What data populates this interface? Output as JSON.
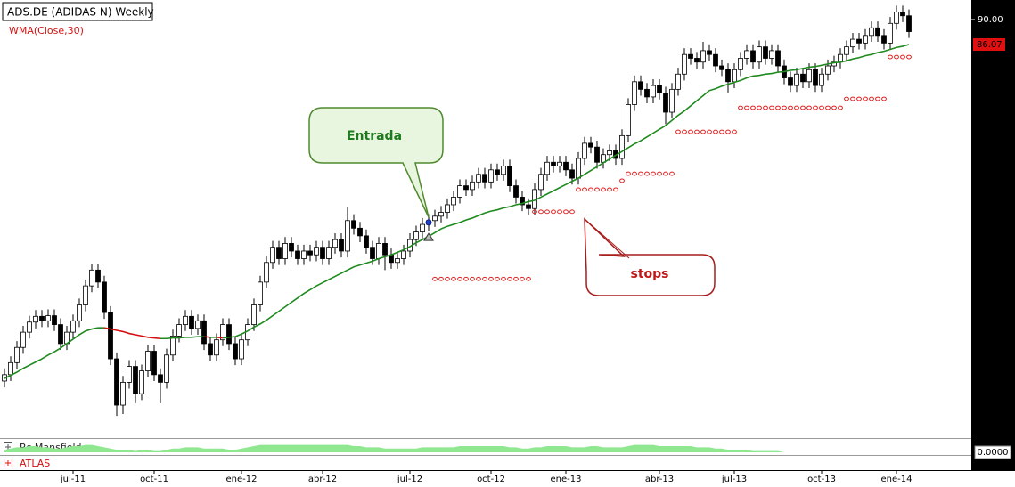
{
  "chart_data": {
    "type": "candlestick",
    "title": "ADS.DE (ADIDAS N) Weekly",
    "categories": [
      null,
      null,
      null,
      null,
      null,
      null,
      null,
      null,
      null,
      null,
      null,
      "jul-11",
      null,
      null,
      null,
      null,
      null,
      null,
      null,
      null,
      null,
      null,
      null,
      null,
      "oct-11",
      null,
      null,
      null,
      null,
      null,
      null,
      null,
      null,
      null,
      null,
      null,
      null,
      null,
      "ene-12",
      null,
      null,
      null,
      null,
      null,
      null,
      null,
      null,
      null,
      null,
      null,
      null,
      "abr-12",
      null,
      null,
      null,
      null,
      null,
      null,
      null,
      null,
      null,
      null,
      null,
      null,
      null,
      "jul-12",
      null,
      null,
      null,
      null,
      null,
      null,
      null,
      null,
      null,
      null,
      null,
      null,
      "oct-12",
      null,
      null,
      null,
      null,
      null,
      null,
      null,
      null,
      null,
      null,
      null,
      "ene-13",
      null,
      null,
      null,
      null,
      null,
      null,
      null,
      null,
      null,
      null,
      null,
      null,
      null,
      null,
      "abr-13",
      null,
      null,
      null,
      null,
      null,
      null,
      null,
      null,
      null,
      null,
      null,
      "jul-13",
      null,
      null,
      null,
      null,
      null,
      null,
      null,
      null,
      null,
      null,
      null,
      null,
      null,
      "oct-13",
      null,
      null,
      null,
      null,
      null,
      null,
      null,
      null,
      null,
      null,
      null,
      "ene-14",
      null,
      null
    ],
    "open": [
      33.0,
      34.0,
      35.9,
      38.3,
      40.7,
      42.3,
      43.2,
      42.5,
      43.3,
      41.9,
      38.9,
      40.7,
      42.5,
      45.0,
      48.0,
      50.5,
      48.6,
      43.8,
      36.5,
      29.2,
      32.8,
      35.3,
      31.0,
      34.6,
      37.7,
      34.0,
      32.8,
      37.1,
      40.1,
      41.9,
      43.2,
      41.3,
      42.5,
      38.9,
      37.1,
      39.5,
      41.9,
      38.9,
      36.5,
      39.5,
      41.9,
      45.0,
      48.6,
      51.7,
      54.1,
      52.3,
      54.7,
      53.5,
      52.3,
      53.5,
      52.9,
      54.1,
      52.3,
      54.1,
      55.3,
      53.5,
      58.3,
      57.1,
      55.9,
      54.1,
      52.3,
      54.7,
      52.9,
      51.7,
      52.3,
      53.5,
      55.3,
      56.5,
      57.7,
      58.3,
      59.0,
      59.6,
      60.8,
      62.0,
      63.8,
      63.2,
      64.4,
      65.6,
      64.4,
      66.3,
      65.6,
      66.9,
      63.8,
      62.0,
      60.8,
      60.2,
      63.2,
      65.6,
      67.5,
      66.9,
      67.5,
      66.3,
      65.0,
      68.1,
      70.5,
      69.9,
      67.5,
      68.7,
      69.3,
      68.1,
      71.7,
      76.6,
      80.2,
      79.0,
      77.8,
      79.6,
      78.4,
      75.4,
      79.0,
      81.4,
      84.5,
      83.9,
      83.3,
      85.1,
      84.5,
      82.7,
      82.1,
      80.2,
      82.1,
      83.9,
      85.1,
      83.3,
      85.7,
      83.9,
      85.1,
      82.7,
      80.8,
      79.6,
      81.4,
      80.2,
      82.1,
      79.6,
      81.4,
      82.7,
      83.3,
      84.5,
      85.7,
      86.9,
      86.3,
      87.5,
      88.7,
      87.5,
      86.3,
      89.4,
      91.2,
      90.6
    ],
    "high": [
      35.0,
      36.9,
      39.3,
      41.7,
      43.3,
      44.2,
      44.2,
      44.3,
      44.3,
      42.9,
      41.7,
      43.5,
      46.0,
      49.0,
      51.5,
      51.5,
      49.6,
      44.8,
      37.5,
      33.8,
      36.3,
      36.3,
      35.6,
      38.7,
      38.7,
      35.0,
      38.1,
      41.1,
      42.9,
      44.2,
      44.2,
      43.5,
      43.5,
      39.9,
      40.5,
      42.9,
      42.9,
      39.9,
      40.5,
      42.9,
      46.0,
      49.6,
      52.7,
      55.1,
      55.1,
      55.7,
      55.7,
      54.5,
      54.5,
      54.5,
      55.1,
      55.1,
      55.1,
      56.3,
      56.3,
      60.5,
      59.3,
      58.1,
      56.9,
      55.1,
      55.7,
      55.7,
      53.9,
      53.3,
      54.5,
      56.3,
      57.5,
      58.7,
      59.3,
      60.0,
      60.6,
      61.8,
      63.0,
      64.8,
      64.8,
      65.4,
      66.6,
      66.6,
      67.3,
      67.3,
      67.9,
      67.9,
      64.8,
      63.0,
      61.8,
      64.2,
      66.6,
      68.5,
      68.5,
      68.5,
      68.5,
      67.3,
      69.1,
      71.5,
      71.5,
      70.9,
      69.7,
      70.3,
      70.3,
      72.7,
      77.6,
      81.2,
      81.2,
      80.0,
      80.6,
      80.6,
      79.4,
      80.0,
      82.4,
      85.5,
      85.5,
      84.9,
      86.5,
      86.1,
      85.5,
      83.7,
      83.1,
      83.1,
      84.9,
      86.1,
      86.1,
      86.7,
      86.7,
      86.1,
      86.1,
      83.7,
      81.8,
      82.4,
      82.4,
      83.1,
      83.1,
      82.4,
      83.7,
      84.3,
      85.5,
      86.7,
      87.9,
      87.9,
      88.5,
      89.7,
      89.7,
      88.5,
      90.4,
      92.2,
      92.2,
      91.6
    ],
    "low": [
      32.0,
      33.0,
      34.9,
      37.3,
      39.7,
      41.3,
      41.5,
      41.5,
      40.9,
      37.9,
      37.9,
      39.7,
      41.5,
      44.0,
      47.0,
      47.6,
      42.8,
      35.5,
      27.5,
      27.8,
      31.8,
      29.5,
      30.0,
      33.6,
      33.0,
      29.5,
      31.8,
      36.1,
      39.1,
      40.9,
      40.3,
      40.3,
      37.9,
      36.1,
      36.1,
      38.5,
      37.9,
      35.5,
      35.5,
      38.5,
      40.9,
      44.0,
      47.6,
      50.7,
      51.3,
      51.3,
      52.5,
      51.3,
      51.3,
      51.9,
      51.9,
      51.3,
      51.3,
      53.1,
      52.5,
      52.5,
      56.1,
      54.9,
      53.1,
      51.3,
      51.3,
      50.5,
      50.7,
      50.7,
      51.3,
      52.5,
      54.3,
      55.5,
      56.7,
      57.3,
      58.0,
      58.6,
      59.8,
      61.0,
      62.2,
      62.2,
      63.4,
      63.4,
      63.4,
      64.6,
      64.6,
      62.8,
      61.0,
      59.8,
      59.2,
      59.2,
      62.2,
      64.6,
      65.9,
      65.9,
      65.3,
      64.0,
      64.0,
      67.1,
      68.9,
      66.5,
      66.5,
      67.7,
      67.1,
      67.1,
      70.7,
      75.6,
      78.0,
      76.8,
      76.8,
      77.4,
      73.5,
      74.4,
      78.0,
      80.4,
      82.9,
      82.3,
      82.3,
      83.5,
      81.7,
      81.1,
      78.5,
      79.2,
      81.1,
      82.9,
      82.3,
      82.3,
      82.9,
      82.9,
      81.7,
      79.8,
      78.6,
      78.6,
      79.2,
      79.2,
      78.6,
      78.6,
      80.4,
      81.7,
      82.3,
      83.5,
      84.7,
      85.3,
      85.3,
      86.5,
      86.5,
      85.3,
      85.3,
      88.4,
      89.6,
      87.1
    ],
    "close": [
      34.0,
      35.9,
      38.3,
      40.7,
      42.3,
      43.2,
      42.5,
      43.3,
      41.9,
      38.9,
      40.7,
      42.5,
      45.0,
      48.0,
      50.5,
      48.6,
      43.8,
      36.5,
      29.2,
      32.8,
      35.3,
      31.0,
      34.6,
      37.7,
      34.0,
      32.8,
      37.1,
      40.1,
      41.9,
      43.2,
      41.3,
      42.5,
      38.9,
      37.1,
      39.5,
      41.9,
      38.9,
      36.5,
      39.5,
      41.9,
      45.0,
      48.6,
      51.7,
      54.1,
      52.3,
      54.7,
      53.5,
      52.3,
      53.5,
      52.9,
      54.1,
      52.3,
      54.1,
      55.3,
      53.5,
      58.3,
      57.1,
      55.9,
      54.1,
      52.3,
      54.7,
      52.9,
      51.7,
      52.3,
      53.5,
      55.3,
      56.5,
      57.7,
      58.3,
      59.0,
      59.6,
      60.8,
      62.0,
      63.8,
      63.2,
      64.4,
      65.6,
      64.4,
      66.3,
      65.6,
      66.9,
      63.8,
      62.0,
      60.8,
      60.2,
      63.2,
      65.6,
      67.5,
      66.9,
      67.5,
      66.3,
      65.0,
      68.1,
      70.5,
      69.9,
      67.5,
      68.7,
      69.3,
      68.1,
      71.7,
      76.6,
      80.2,
      79.0,
      77.8,
      79.6,
      78.4,
      75.4,
      79.0,
      81.4,
      84.5,
      83.9,
      83.3,
      85.1,
      84.5,
      82.7,
      82.1,
      80.2,
      82.1,
      83.9,
      85.1,
      83.3,
      85.7,
      83.9,
      85.1,
      82.7,
      80.8,
      79.6,
      81.4,
      80.2,
      82.1,
      79.6,
      81.4,
      82.7,
      83.3,
      84.5,
      85.7,
      86.9,
      86.3,
      87.5,
      88.7,
      87.5,
      86.3,
      89.4,
      91.2,
      90.6,
      88.1
    ],
    "up_color": "#ffffff",
    "down_color": "#000000",
    "ylim": [
      24.29,
      92.39
    ],
    "yticks": [
      {
        "value": 90,
        "label": "90.00"
      }
    ],
    "series": [
      {
        "name": "WMA(Close,30)",
        "color": "#1f8a1f",
        "falling_color": "#d41010",
        "last_value_label": "86.07",
        "values": [
          33.4,
          33.9,
          34.4,
          35.0,
          35.5,
          36.0,
          36.5,
          37.1,
          37.6,
          38.2,
          38.9,
          39.6,
          40.3,
          40.9,
          41.2,
          41.4,
          41.4,
          41.2,
          41.0,
          40.8,
          40.5,
          40.3,
          40.1,
          39.9,
          39.8,
          39.7,
          39.7,
          39.8,
          39.8,
          39.9,
          39.9,
          40.0,
          40.0,
          39.9,
          39.9,
          39.8,
          39.9,
          40.0,
          40.4,
          40.9,
          41.5,
          42.0,
          42.6,
          43.3,
          44.0,
          44.7,
          45.4,
          46.1,
          46.8,
          47.4,
          48.0,
          48.5,
          49.0,
          49.5,
          50.0,
          50.5,
          51.0,
          51.3,
          51.6,
          51.9,
          52.3,
          52.6,
          52.9,
          53.3,
          53.7,
          54.2,
          54.8,
          55.3,
          55.8,
          56.4,
          57.0,
          57.4,
          57.7,
          58.0,
          58.4,
          58.7,
          59.1,
          59.5,
          59.8,
          60.0,
          60.3,
          60.5,
          60.8,
          61.0,
          61.3,
          61.5,
          62.0,
          62.5,
          63.0,
          63.5,
          64.0,
          64.5,
          65.0,
          65.6,
          66.2,
          66.8,
          67.4,
          68.0,
          68.6,
          69.2,
          69.8,
          70.4,
          70.9,
          71.5,
          72.1,
          72.7,
          73.3,
          74.1,
          74.9,
          75.6,
          76.4,
          77.2,
          78.0,
          78.8,
          79.1,
          79.5,
          79.8,
          80.1,
          80.4,
          80.8,
          81.1,
          81.2,
          81.4,
          81.5,
          81.7,
          81.8,
          82.0,
          82.1,
          82.3,
          82.5,
          82.6,
          82.8,
          83.0,
          83.2,
          83.3,
          83.5,
          83.8,
          84.0,
          84.3,
          84.5,
          84.8,
          85.0,
          85.3,
          85.6,
          85.8,
          86.07
        ]
      }
    ],
    "stops": {
      "color": "#e02020",
      "values": [
        null,
        null,
        null,
        null,
        null,
        null,
        null,
        null,
        null,
        null,
        null,
        null,
        null,
        null,
        null,
        null,
        null,
        null,
        null,
        null,
        null,
        null,
        null,
        null,
        null,
        null,
        null,
        null,
        null,
        null,
        null,
        null,
        null,
        null,
        null,
        null,
        null,
        null,
        null,
        null,
        null,
        null,
        null,
        null,
        null,
        null,
        null,
        null,
        null,
        null,
        null,
        null,
        null,
        null,
        null,
        null,
        null,
        null,
        null,
        null,
        null,
        null,
        null,
        null,
        null,
        null,
        null,
        null,
        null,
        49.1,
        49.1,
        49.1,
        49.1,
        49.1,
        49.1,
        49.1,
        49.1,
        49.1,
        49.1,
        49.1,
        49.1,
        49.1,
        49.1,
        49.1,
        49.1,
        59.7,
        59.7,
        59.7,
        59.7,
        59.7,
        59.7,
        59.7,
        63.2,
        63.2,
        63.2,
        63.2,
        63.2,
        63.2,
        63.2,
        64.6,
        65.7,
        65.7,
        65.7,
        65.7,
        65.7,
        65.7,
        65.7,
        65.7,
        72.3,
        72.3,
        72.3,
        72.3,
        72.3,
        72.3,
        72.3,
        72.3,
        72.3,
        72.3,
        76.1,
        76.1,
        76.1,
        76.1,
        76.1,
        76.1,
        76.1,
        76.1,
        76.1,
        76.1,
        76.1,
        76.1,
        76.1,
        76.1,
        76.1,
        76.1,
        76.1,
        77.5,
        77.5,
        77.5,
        77.5,
        77.5,
        77.5,
        77.5,
        84.1,
        84.1,
        84.1,
        84.1
      ]
    },
    "entry": {
      "category_index": 68,
      "value": 58.0,
      "color": "#2040d0"
    },
    "annotations": [
      {
        "text": "Entrada"
      },
      {
        "text": "stops"
      }
    ],
    "panes": [
      {
        "name": "Rs Mansfield",
        "type": "area",
        "color": "#8fe88f",
        "ylim": [
          0,
          10
        ],
        "yticks": [
          {
            "value": 0,
            "label": "0.0000"
          }
        ],
        "values": [
          2,
          3,
          4,
          4,
          5,
          5,
          4,
          4,
          3,
          3,
          4,
          5,
          5,
          6,
          6,
          5,
          4,
          3,
          2,
          2,
          2,
          1,
          2,
          2,
          1,
          1,
          2,
          3,
          3,
          4,
          4,
          4,
          3,
          3,
          3,
          3,
          2,
          2,
          3,
          4,
          5,
          6,
          6,
          6,
          6,
          6,
          6,
          6,
          6,
          6,
          6,
          6,
          6,
          6,
          6,
          6,
          5,
          5,
          4,
          4,
          4,
          3,
          3,
          3,
          3,
          3,
          3,
          4,
          4,
          4,
          4,
          4,
          4,
          5,
          5,
          5,
          5,
          5,
          5,
          5,
          5,
          4,
          4,
          3,
          3,
          4,
          4,
          5,
          5,
          5,
          5,
          4,
          4,
          4,
          5,
          5,
          4,
          4,
          4,
          4,
          5,
          6,
          6,
          6,
          6,
          5,
          5,
          5,
          5,
          5,
          5,
          4,
          4,
          4,
          3,
          3,
          2,
          2,
          2,
          2,
          1,
          1,
          1,
          1,
          1,
          0,
          0,
          0,
          0,
          0,
          0,
          0,
          0,
          0,
          0,
          0,
          0,
          0,
          0,
          0,
          0,
          0,
          0,
          0,
          0,
          0,
          0
        ]
      },
      {
        "name": "ATLAS"
      }
    ]
  }
}
